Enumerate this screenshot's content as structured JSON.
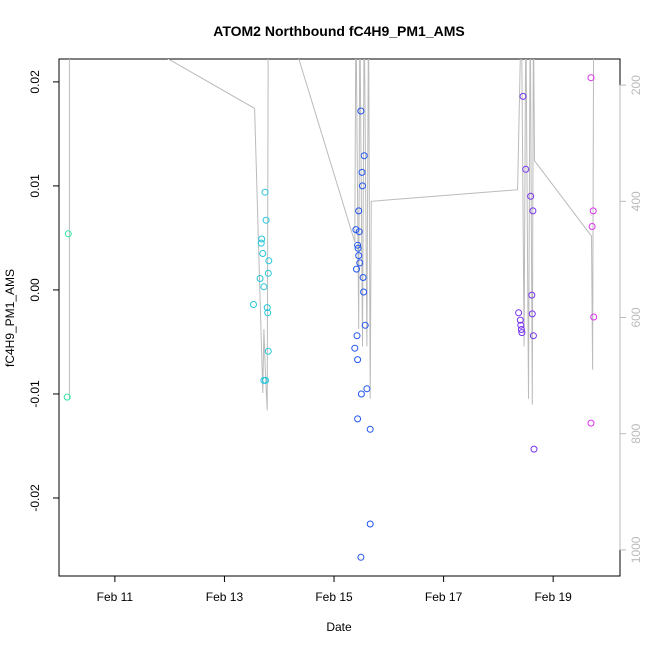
{
  "chart_data": {
    "type": "scatter",
    "title": "ATOM2 Northbound fC4H9_PM1_AMS",
    "xlabel": "Date",
    "ylabel": "fC4H9_PM1_AMS",
    "x_ticks": [
      "Feb 11",
      "Feb 13",
      "Feb 15",
      "Feb 17",
      "Feb 19"
    ],
    "x_tick_values": [
      11,
      13,
      15,
      17,
      19
    ],
    "x_range": [
      9.98,
      20.22
    ],
    "y_ticks": [
      "-0.02",
      "-0.01",
      "0.00",
      "0.01",
      "0.02"
    ],
    "y_tick_values": [
      -0.02,
      -0.01,
      0.0,
      0.01,
      0.02
    ],
    "y_range": [
      -0.0275,
      0.0222
    ],
    "y2_ticks": [
      "200",
      "400",
      "600",
      "800",
      "1000"
    ],
    "y2_tick_values": [
      200,
      400,
      600,
      800,
      1000
    ],
    "y2_range": [
      1045,
      155
    ],
    "y2_axis_color": "#bbbbbb",
    "line_color": "#bbbbbb",
    "grid": false,
    "points": [
      {
        "x": 10.15,
        "y": 0.0054,
        "color": "#33e6a0"
      },
      {
        "x": 10.13,
        "y": -0.0103,
        "color": "#33e6a0"
      },
      {
        "x": 13.53,
        "y": -0.0014,
        "color": "#26c6da"
      },
      {
        "x": 13.65,
        "y": 0.0011,
        "color": "#26c6da"
      },
      {
        "x": 13.67,
        "y": 0.0045,
        "color": "#26c6da"
      },
      {
        "x": 13.68,
        "y": 0.0049,
        "color": "#26c6da"
      },
      {
        "x": 13.7,
        "y": 0.0035,
        "color": "#26c6da"
      },
      {
        "x": 13.72,
        "y": 0.0003,
        "color": "#26c6da"
      },
      {
        "x": 13.74,
        "y": 0.0094,
        "color": "#26c6da"
      },
      {
        "x": 13.76,
        "y": 0.0067,
        "color": "#26c6da"
      },
      {
        "x": 13.72,
        "y": -0.0087,
        "color": "#26c6da"
      },
      {
        "x": 13.75,
        "y": -0.0087,
        "color": "#26c6da"
      },
      {
        "x": 13.78,
        "y": -0.0017,
        "color": "#26c6da"
      },
      {
        "x": 13.79,
        "y": -0.0022,
        "color": "#26c6da"
      },
      {
        "x": 13.8,
        "y": 0.0016,
        "color": "#26c6da"
      },
      {
        "x": 13.81,
        "y": 0.0028,
        "color": "#26c6da"
      },
      {
        "x": 13.8,
        "y": -0.0059,
        "color": "#26c6da"
      },
      {
        "x": 15.38,
        "y": -0.0056,
        "color": "#2255ee"
      },
      {
        "x": 15.4,
        "y": 0.0058,
        "color": "#2255ee"
      },
      {
        "x": 15.41,
        "y": 0.002,
        "color": "#2255ee"
      },
      {
        "x": 15.42,
        "y": -0.0044,
        "color": "#2255ee"
      },
      {
        "x": 15.43,
        "y": -0.0067,
        "color": "#2255ee"
      },
      {
        "x": 15.43,
        "y": 0.0043,
        "color": "#2255ee"
      },
      {
        "x": 15.44,
        "y": 0.004,
        "color": "#2255ee"
      },
      {
        "x": 15.45,
        "y": 0.0076,
        "color": "#2255ee"
      },
      {
        "x": 15.45,
        "y": 0.0033,
        "color": "#2255ee"
      },
      {
        "x": 15.46,
        "y": 0.0056,
        "color": "#2255ee"
      },
      {
        "x": 15.47,
        "y": 0.0026,
        "color": "#2255ee"
      },
      {
        "x": 15.43,
        "y": -0.0124,
        "color": "#2255ee"
      },
      {
        "x": 15.49,
        "y": 0.0172,
        "color": "#2255ee"
      },
      {
        "x": 15.5,
        "y": -0.01,
        "color": "#2255ee"
      },
      {
        "x": 15.51,
        "y": 0.0113,
        "color": "#2255ee"
      },
      {
        "x": 15.52,
        "y": 0.01,
        "color": "#2255ee"
      },
      {
        "x": 15.53,
        "y": 0.0012,
        "color": "#2255ee"
      },
      {
        "x": 15.54,
        "y": -0.0002,
        "color": "#2255ee"
      },
      {
        "x": 15.55,
        "y": 0.0129,
        "color": "#2255ee"
      },
      {
        "x": 15.57,
        "y": -0.0034,
        "color": "#2255ee"
      },
      {
        "x": 15.6,
        "y": -0.0095,
        "color": "#2255ee"
      },
      {
        "x": 15.66,
        "y": -0.0134,
        "color": "#2255ee"
      },
      {
        "x": 15.66,
        "y": -0.0225,
        "color": "#2255ee"
      },
      {
        "x": 15.49,
        "y": -0.0257,
        "color": "#2255ee"
      },
      {
        "x": 18.37,
        "y": -0.0022,
        "color": "#7733ee"
      },
      {
        "x": 18.4,
        "y": -0.0029,
        "color": "#7733ee"
      },
      {
        "x": 18.41,
        "y": -0.0034,
        "color": "#7733ee"
      },
      {
        "x": 18.42,
        "y": -0.0038,
        "color": "#7733ee"
      },
      {
        "x": 18.43,
        "y": -0.0041,
        "color": "#7733ee"
      },
      {
        "x": 18.45,
        "y": 0.0186,
        "color": "#7733ee"
      },
      {
        "x": 18.5,
        "y": 0.0116,
        "color": "#7733ee"
      },
      {
        "x": 18.59,
        "y": 0.009,
        "color": "#7733ee"
      },
      {
        "x": 18.61,
        "y": -0.0005,
        "color": "#7733ee"
      },
      {
        "x": 18.62,
        "y": -0.0023,
        "color": "#7733ee"
      },
      {
        "x": 18.63,
        "y": 0.0076,
        "color": "#7733ee"
      },
      {
        "x": 18.64,
        "y": -0.0044,
        "color": "#7733ee"
      },
      {
        "x": 18.65,
        "y": -0.0153,
        "color": "#7733ee"
      },
      {
        "x": 19.69,
        "y": 0.0204,
        "color": "#dd33ee"
      },
      {
        "x": 19.71,
        "y": 0.0061,
        "color": "#dd33ee"
      },
      {
        "x": 19.73,
        "y": 0.0076,
        "color": "#dd33ee"
      },
      {
        "x": 19.74,
        "y": -0.0026,
        "color": "#dd33ee"
      },
      {
        "x": 19.69,
        "y": -0.0128,
        "color": "#dd33ee"
      }
    ],
    "line_series": [
      [
        10.17,
        740
      ],
      [
        10.17,
        110
      ],
      [
        11.7,
        140
      ],
      [
        13.55,
        240
      ],
      [
        13.7,
        730
      ],
      [
        13.72,
        620
      ],
      [
        13.75,
        700
      ],
      [
        13.78,
        760
      ],
      [
        13.8,
        60
      ],
      [
        14.05,
        60
      ],
      [
        15.38,
        470
      ],
      [
        15.4,
        60
      ],
      [
        15.45,
        620
      ],
      [
        15.47,
        60
      ],
      [
        15.52,
        650
      ],
      [
        15.55,
        60
      ],
      [
        15.6,
        650
      ],
      [
        15.63,
        60
      ],
      [
        15.66,
        740
      ],
      [
        15.68,
        400
      ],
      [
        18.35,
        380
      ],
      [
        18.42,
        60
      ],
      [
        18.47,
        650
      ],
      [
        18.5,
        60
      ],
      [
        18.55,
        740
      ],
      [
        18.58,
        60
      ],
      [
        18.62,
        750
      ],
      [
        18.64,
        60
      ],
      [
        18.66,
        330
      ],
      [
        19.7,
        460
      ],
      [
        19.72,
        690
      ],
      [
        19.74,
        60
      ]
    ]
  }
}
